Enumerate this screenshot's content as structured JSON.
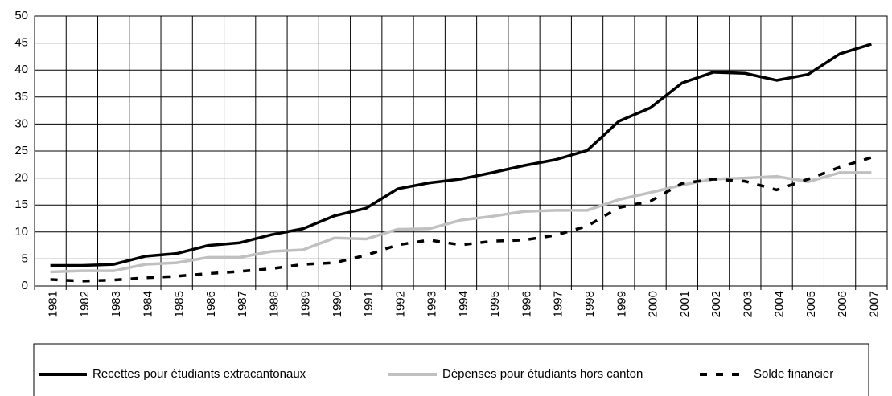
{
  "chart_data": {
    "type": "line",
    "categories": [
      "1981",
      "1982",
      "1983",
      "1984",
      "1985",
      "1986",
      "1987",
      "1988",
      "1989",
      "1990",
      "1991",
      "1992",
      "1993",
      "1994",
      "1995",
      "1996",
      "1997",
      "1998",
      "1999",
      "2000",
      "2001",
      "2002",
      "2003",
      "2004",
      "2005",
      "2006",
      "2007"
    ],
    "series": [
      {
        "name": "Recettes pour étudiants extracantonaux",
        "color": "#000000",
        "dash": false,
        "values": [
          3.8,
          3.8,
          4.0,
          5.5,
          6.0,
          7.5,
          8.0,
          9.5,
          10.6,
          13.0,
          14.4,
          18.0,
          19.1,
          19.8,
          21.0,
          22.3,
          23.4,
          25.1,
          30.5,
          33.0,
          37.6,
          39.6,
          39.4,
          38.1,
          39.2,
          43.0,
          44.8
        ]
      },
      {
        "name": "Dépenses pour étudiants  hors canton",
        "color": "#c0c0c0",
        "dash": false,
        "values": [
          2.6,
          2.8,
          2.8,
          4.0,
          4.3,
          5.3,
          5.3,
          6.4,
          6.7,
          8.9,
          8.7,
          10.5,
          10.6,
          12.2,
          12.9,
          13.8,
          14.0,
          14.0,
          16.0,
          17.3,
          18.7,
          19.8,
          20.0,
          20.3,
          19.3,
          21.0,
          21.0
        ]
      },
      {
        "name": "Solde financier",
        "color": "#000000",
        "dash": true,
        "values": [
          1.2,
          0.9,
          1.1,
          1.5,
          1.8,
          2.3,
          2.7,
          3.2,
          4.0,
          4.3,
          5.7,
          7.6,
          8.5,
          7.6,
          8.3,
          8.5,
          9.4,
          11.1,
          14.5,
          15.7,
          19.0,
          19.8,
          19.4,
          17.8,
          19.8,
          22.0,
          23.8
        ]
      }
    ],
    "ylim": [
      0,
      50
    ],
    "yticks": [
      0,
      5,
      10,
      15,
      20,
      25,
      30,
      35,
      40,
      45,
      50
    ],
    "grid": true,
    "legend": "bottom"
  }
}
